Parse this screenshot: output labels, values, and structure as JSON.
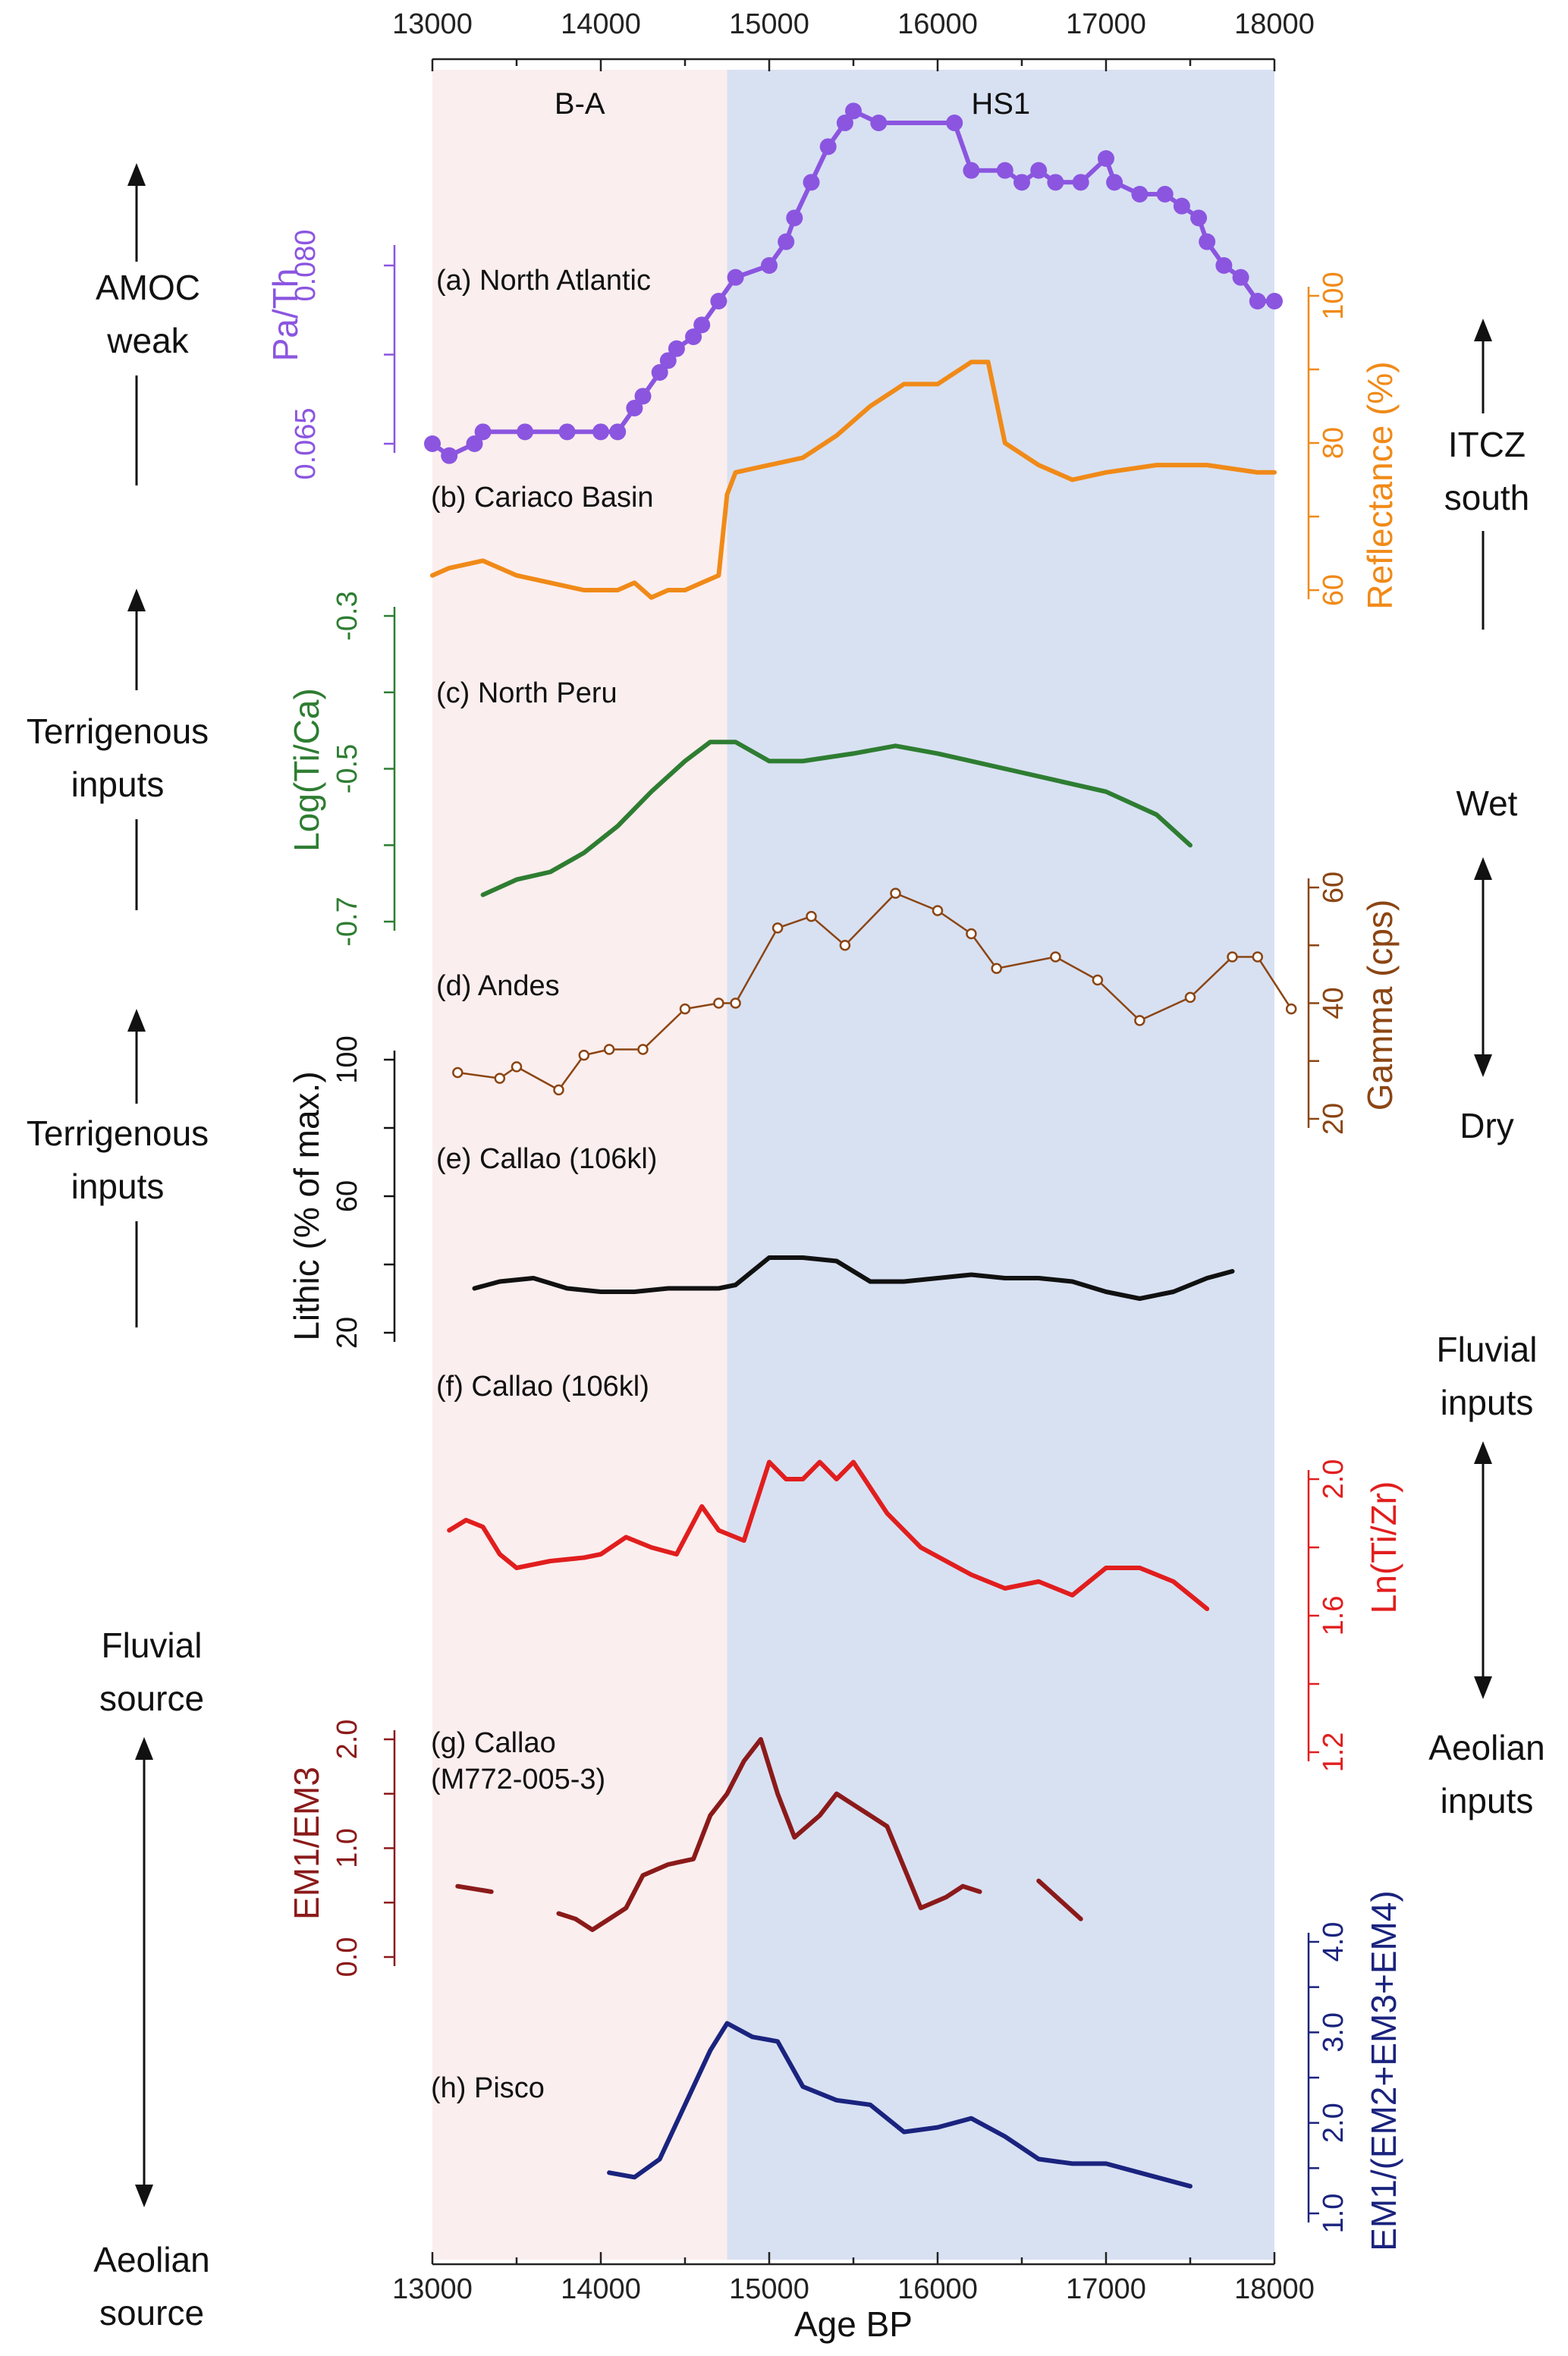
{
  "chart_data": {
    "type": "line",
    "x_axis": {
      "label": "Age BP",
      "ticks": [
        13000,
        14000,
        15000,
        16000,
        17000,
        18000
      ],
      "minor_step": 500,
      "range": [
        13000,
        18000
      ]
    },
    "bands": [
      {
        "name": "B-A",
        "range": [
          13000,
          14750
        ],
        "color": "#fbeeee"
      },
      {
        "name": "HS1",
        "range": [
          14750,
          18000
        ],
        "color": "#d8e1f2"
      }
    ],
    "series": [
      {
        "id": "a",
        "name": "(a) North Atlantic",
        "ylabel": "Pa/Th",
        "color": "#8b55e0",
        "ticks": [
          "0.065",
          "0.080"
        ],
        "tick_values": [
          0.065,
          0.08
        ],
        "points": [
          [
            13000,
            0.065
          ],
          [
            13100,
            0.064
          ],
          [
            13250,
            0.065
          ],
          [
            13300,
            0.066
          ],
          [
            13550,
            0.066
          ],
          [
            13800,
            0.066
          ],
          [
            14000,
            0.066
          ],
          [
            14100,
            0.066
          ],
          [
            14200,
            0.068
          ],
          [
            14250,
            0.069
          ],
          [
            14350,
            0.071
          ],
          [
            14400,
            0.072
          ],
          [
            14450,
            0.073
          ],
          [
            14550,
            0.074
          ],
          [
            14600,
            0.075
          ],
          [
            14700,
            0.077
          ],
          [
            14800,
            0.079
          ],
          [
            15000,
            0.08
          ],
          [
            15100,
            0.082
          ],
          [
            15150,
            0.084
          ],
          [
            15250,
            0.087
          ],
          [
            15350,
            0.09
          ],
          [
            15450,
            0.092
          ],
          [
            15500,
            0.093
          ],
          [
            15650,
            0.092
          ],
          [
            16100,
            0.092
          ],
          [
            16200,
            0.088
          ],
          [
            16400,
            0.088
          ],
          [
            16500,
            0.087
          ],
          [
            16600,
            0.088
          ],
          [
            16700,
            0.087
          ],
          [
            16850,
            0.087
          ],
          [
            17000,
            0.089
          ],
          [
            17050,
            0.087
          ],
          [
            17200,
            0.086
          ],
          [
            17350,
            0.086
          ],
          [
            17450,
            0.085
          ],
          [
            17550,
            0.084
          ],
          [
            17600,
            0.082
          ],
          [
            17700,
            0.08
          ],
          [
            17800,
            0.079
          ],
          [
            17900,
            0.077
          ],
          [
            18000,
            0.077
          ]
        ]
      },
      {
        "id": "b",
        "name": "(b) Cariaco Basin",
        "ylabel": "Reflectance (%)",
        "color": "#f08a18",
        "ticks": [
          "60",
          "80",
          "100"
        ],
        "tick_values": [
          60,
          80,
          100
        ],
        "smooth": [
          [
            13000,
            62
          ],
          [
            13100,
            63
          ],
          [
            13300,
            64
          ],
          [
            13500,
            62
          ],
          [
            13700,
            61
          ],
          [
            13900,
            60
          ],
          [
            14100,
            60
          ],
          [
            14200,
            61
          ],
          [
            14300,
            59
          ],
          [
            14400,
            60
          ],
          [
            14500,
            60
          ],
          [
            14600,
            61
          ],
          [
            14700,
            62
          ],
          [
            14750,
            73
          ],
          [
            14800,
            76
          ],
          [
            15000,
            77
          ],
          [
            15200,
            78
          ],
          [
            15400,
            81
          ],
          [
            15600,
            85
          ],
          [
            15800,
            88
          ],
          [
            16000,
            88
          ],
          [
            16200,
            91
          ],
          [
            16300,
            91
          ],
          [
            16400,
            80
          ],
          [
            16600,
            77
          ],
          [
            16800,
            75
          ],
          [
            17000,
            76
          ],
          [
            17300,
            77
          ],
          [
            17600,
            77
          ],
          [
            17900,
            76
          ],
          [
            18000,
            76
          ]
        ]
      },
      {
        "id": "c",
        "name": "(c) North Peru",
        "ylabel": "Log(Ti/Ca)",
        "color": "#2e7d32",
        "ticks": [
          "-0.7",
          "-0.5",
          "-0.3"
        ],
        "tick_values": [
          -0.7,
          -0.5,
          -0.3
        ],
        "smooth": [
          [
            13300,
            -0.665
          ],
          [
            13500,
            -0.645
          ],
          [
            13700,
            -0.635
          ],
          [
            13900,
            -0.61
          ],
          [
            14100,
            -0.575
          ],
          [
            14300,
            -0.53
          ],
          [
            14500,
            -0.49
          ],
          [
            14650,
            -0.465
          ],
          [
            14800,
            -0.465
          ],
          [
            15000,
            -0.49
          ],
          [
            15200,
            -0.49
          ],
          [
            15500,
            -0.48
          ],
          [
            15750,
            -0.47
          ],
          [
            16000,
            -0.48
          ],
          [
            16200,
            -0.49
          ],
          [
            16500,
            -0.505
          ],
          [
            16700,
            -0.515
          ],
          [
            17000,
            -0.53
          ],
          [
            17300,
            -0.56
          ],
          [
            17500,
            -0.6
          ]
        ]
      },
      {
        "id": "d",
        "name": "(d) Andes",
        "ylabel": "Gamma (cps)",
        "color": "#8b4513",
        "ticks": [
          "20",
          "40",
          "60"
        ],
        "tick_values": [
          20,
          40,
          60
        ],
        "points": [
          [
            13150,
            28
          ],
          [
            13400,
            27
          ],
          [
            13500,
            29
          ],
          [
            13750,
            25
          ],
          [
            13900,
            31
          ],
          [
            14050,
            32
          ],
          [
            14250,
            32
          ],
          [
            14500,
            39
          ],
          [
            14700,
            40
          ],
          [
            14800,
            40
          ],
          [
            15050,
            53
          ],
          [
            15250,
            55
          ],
          [
            15450,
            50
          ],
          [
            15750,
            59
          ],
          [
            16000,
            56
          ],
          [
            16200,
            52
          ],
          [
            16350,
            46
          ],
          [
            16700,
            48
          ],
          [
            16950,
            44
          ],
          [
            17200,
            37
          ],
          [
            17500,
            41
          ],
          [
            17750,
            48
          ],
          [
            17900,
            48
          ],
          [
            18100,
            39
          ]
        ]
      },
      {
        "id": "e",
        "name": "(e) Callao (106kl)",
        "ylabel": "Lithic (% of max.)",
        "color": "#111111",
        "ticks": [
          "20",
          "60",
          "100"
        ],
        "tick_values": [
          20,
          60,
          100
        ],
        "smooth": [
          [
            13250,
            33
          ],
          [
            13400,
            35
          ],
          [
            13600,
            36
          ],
          [
            13800,
            33
          ],
          [
            14000,
            32
          ],
          [
            14200,
            32
          ],
          [
            14400,
            33
          ],
          [
            14700,
            33
          ],
          [
            14800,
            34
          ],
          [
            15000,
            42
          ],
          [
            15200,
            42
          ],
          [
            15400,
            41
          ],
          [
            15600,
            35
          ],
          [
            15800,
            35
          ],
          [
            16000,
            36
          ],
          [
            16200,
            37
          ],
          [
            16400,
            36
          ],
          [
            16600,
            36
          ],
          [
            16800,
            35
          ],
          [
            17000,
            32
          ],
          [
            17200,
            30
          ],
          [
            17400,
            32
          ],
          [
            17600,
            36
          ],
          [
            17750,
            38
          ]
        ]
      },
      {
        "id": "f",
        "name": "(f) Callao (106kl)",
        "ylabel": "Ln(Ti/Zr)",
        "color": "#e11e1e",
        "ticks": [
          "1.2",
          "1.6",
          "2.0"
        ],
        "tick_values": [
          1.2,
          1.6,
          2.0
        ],
        "smooth": [
          [
            13100,
            1.85
          ],
          [
            13200,
            1.88
          ],
          [
            13300,
            1.86
          ],
          [
            13400,
            1.78
          ],
          [
            13500,
            1.74
          ],
          [
            13700,
            1.76
          ],
          [
            13900,
            1.77
          ],
          [
            14000,
            1.78
          ],
          [
            14150,
            1.83
          ],
          [
            14300,
            1.8
          ],
          [
            14450,
            1.78
          ],
          [
            14600,
            1.92
          ],
          [
            14700,
            1.85
          ],
          [
            14850,
            1.82
          ],
          [
            15000,
            2.05
          ],
          [
            15100,
            2.0
          ],
          [
            15200,
            2.0
          ],
          [
            15300,
            2.05
          ],
          [
            15400,
            2.0
          ],
          [
            15500,
            2.05
          ],
          [
            15700,
            1.9
          ],
          [
            15900,
            1.8
          ],
          [
            16200,
            1.72
          ],
          [
            16400,
            1.68
          ],
          [
            16600,
            1.7
          ],
          [
            16800,
            1.66
          ],
          [
            17000,
            1.74
          ],
          [
            17200,
            1.74
          ],
          [
            17400,
            1.7
          ],
          [
            17600,
            1.62
          ]
        ]
      },
      {
        "id": "g",
        "name": "(g) Callao (M772-005-3)",
        "name_line1": "(g) Callao",
        "name_line2": "(M772-005-3)",
        "ylabel": "EM1/EM3",
        "color": "#8b1a1a",
        "ticks": [
          "0.0",
          "1.0",
          "2.0"
        ],
        "tick_values": [
          0.0,
          1.0,
          2.0
        ],
        "smooth_segments": [
          [
            [
              13150,
              0.65
            ],
            [
              13350,
              0.6
            ]
          ],
          [
            [
              13750,
              0.4
            ],
            [
              13850,
              0.35
            ],
            [
              13950,
              0.25
            ],
            [
              14050,
              0.35
            ],
            [
              14150,
              0.45
            ],
            [
              14250,
              0.75
            ],
            [
              14400,
              0.85
            ],
            [
              14550,
              0.9
            ],
            [
              14650,
              1.3
            ],
            [
              14750,
              1.5
            ],
            [
              14850,
              1.8
            ],
            [
              14950,
              2.0
            ],
            [
              15050,
              1.5
            ],
            [
              15150,
              1.1
            ],
            [
              15300,
              1.3
            ],
            [
              15400,
              1.5
            ],
            [
              15500,
              1.4
            ],
            [
              15700,
              1.2
            ],
            [
              15900,
              0.45
            ],
            [
              16050,
              0.55
            ],
            [
              16150,
              0.65
            ],
            [
              16250,
              0.6
            ]
          ],
          [
            [
              16600,
              0.7
            ],
            [
              16850,
              0.35
            ]
          ]
        ]
      },
      {
        "id": "h",
        "name": "(h) Pisco",
        "ylabel": "EM1/(EM2+EM3+EM4)",
        "color": "#1a237e",
        "ticks": [
          "1.0",
          "2.0",
          "3.0",
          "4.0"
        ],
        "tick_values": [
          1.0,
          2.0,
          3.0,
          4.0
        ],
        "smooth": [
          [
            14050,
            1.45
          ],
          [
            14200,
            1.4
          ],
          [
            14350,
            1.6
          ],
          [
            14500,
            2.2
          ],
          [
            14650,
            2.8
          ],
          [
            14750,
            3.1
          ],
          [
            14900,
            2.95
          ],
          [
            15050,
            2.9
          ],
          [
            15200,
            2.4
          ],
          [
            15400,
            2.25
          ],
          [
            15600,
            2.2
          ],
          [
            15800,
            1.9
          ],
          [
            16000,
            1.95
          ],
          [
            16200,
            2.05
          ],
          [
            16400,
            1.85
          ],
          [
            16600,
            1.6
          ],
          [
            16800,
            1.55
          ],
          [
            17000,
            1.55
          ],
          [
            17300,
            1.4
          ],
          [
            17500,
            1.3
          ]
        ]
      }
    ],
    "side_annotations": [
      {
        "id": "amoc",
        "text_top": "AMOC",
        "text_bottom": "weak"
      },
      {
        "id": "itcz",
        "text_top": "ITCZ",
        "text_bottom": "south"
      },
      {
        "id": "terr1",
        "text_top": "Terrigenous",
        "text_bottom": "inputs"
      },
      {
        "id": "wetdry",
        "text_top": "Wet",
        "text_bottom": "Dry"
      },
      {
        "id": "terr2",
        "text_top": "Terrigenous",
        "text_bottom": "inputs"
      },
      {
        "id": "fluvial_top",
        "text_top": "Fluvial",
        "text_bottom": "inputs"
      },
      {
        "id": "aeolian_inputs",
        "text_top": "Aeolian",
        "text_bottom": "inputs"
      },
      {
        "id": "fluvial_source",
        "text_top": "Fluvial",
        "text_bottom": "source"
      },
      {
        "id": "aeolian_source",
        "text_top": "Aeolian",
        "text_bottom": "source"
      }
    ]
  }
}
